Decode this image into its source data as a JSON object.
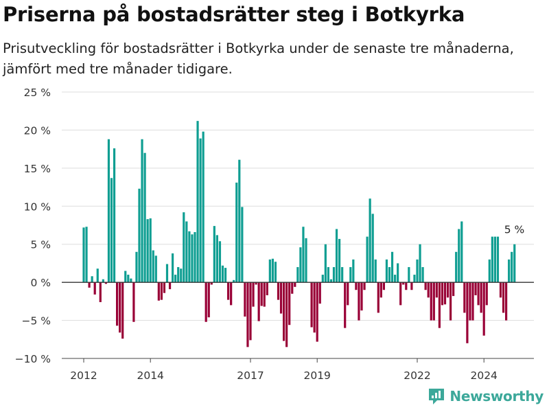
{
  "header": {
    "title": "Priserna på bostadsrätter steg i Botkyrka",
    "subtitle": "Prisutveckling för bostadsrätter i Botkyrka under de senaste tre månaderna, jämfört med tre månader tidigare."
  },
  "brand": {
    "name": "Newsworthy",
    "icon": "newsworthy-logo-icon",
    "color": "#3ca89a"
  },
  "colors": {
    "positive": "#0f9e92",
    "negative": "#990036",
    "grid": "#dddddd",
    "zero_line": "#333333"
  },
  "chart_data": {
    "type": "bar",
    "title": "Priserna på bostadsrätter steg i Botkyrka",
    "subtitle": "Prisutveckling för bostadsrätter i Botkyrka under de senaste tre månaderna, jämfört med tre månader tidigare.",
    "xlabel": "",
    "ylabel": "",
    "unit": "%",
    "x_start": "2012-01",
    "x_interval": "monthly",
    "ylim": [
      -10,
      25
    ],
    "yticks": [
      -10,
      -5,
      0,
      5,
      10,
      15,
      20,
      25
    ],
    "ytick_labels": [
      "−10 %",
      "−5 %",
      "0 %",
      "5 %",
      "10 %",
      "15 %",
      "20 %",
      "25 %"
    ],
    "xticks": [
      {
        "label": "2012",
        "date": "2012-01"
      },
      {
        "label": "2014",
        "date": "2014-01"
      },
      {
        "label": "2017",
        "date": "2017-01"
      },
      {
        "label": "2019",
        "date": "2019-01"
      },
      {
        "label": "2022",
        "date": "2022-01"
      },
      {
        "label": "2024",
        "date": "2024-01"
      }
    ],
    "grid": true,
    "annotation": {
      "text": "5 %",
      "date": "2024-12"
    },
    "values": [
      7.2,
      7.3,
      -0.7,
      0.8,
      -1.6,
      1.8,
      -2.6,
      0.4,
      -0.2,
      18.8,
      13.7,
      17.6,
      -5.7,
      -6.6,
      -7.4,
      1.5,
      1.0,
      0.5,
      -5.2,
      4.0,
      12.3,
      18.8,
      17.0,
      8.3,
      8.4,
      4.2,
      3.5,
      -2.4,
      -2.3,
      -1.4,
      2.4,
      -0.9,
      3.8,
      1.0,
      2.0,
      1.8,
      9.2,
      8.0,
      6.7,
      6.3,
      6.6,
      21.2,
      18.9,
      19.8,
      -5.2,
      -4.6,
      -0.3,
      7.4,
      6.2,
      5.4,
      2.2,
      1.9,
      -2.3,
      -3.0,
      0.3,
      13.1,
      16.1,
      9.9,
      -4.5,
      -8.5,
      -7.6,
      -3.2,
      -0.3,
      -5.1,
      -3.1,
      -3.2,
      -1.7,
      3.0,
      3.1,
      2.7,
      -2.3,
      -4.1,
      -7.7,
      -8.5,
      -5.6,
      -1.5,
      -0.6,
      2.0,
      4.6,
      7.3,
      5.8,
      0.0,
      -5.9,
      -6.6,
      -7.8,
      -2.8,
      1.0,
      5.0,
      2.0,
      0.4,
      2.0,
      7.0,
      5.7,
      2.0,
      -6.0,
      -3.0,
      2.0,
      3.0,
      -1.0,
      -5.0,
      -3.7,
      -1.0,
      6.0,
      11.0,
      9.0,
      3.0,
      -4.0,
      -2.0,
      -1.0,
      3.0,
      2.0,
      4.0,
      1.0,
      2.5,
      -3.0,
      -0.3,
      -1.0,
      2.0,
      -1.0,
      1.0,
      3.0,
      5.0,
      2.0,
      -1.0,
      -2.0,
      -5.0,
      -5.0,
      -2.0,
      -6.0,
      -3.0,
      -2.9,
      -2.0,
      -5.0,
      -1.8,
      4.0,
      7.0,
      8.0,
      -4.0,
      -8.0,
      -5.0,
      -5.0,
      -1.7,
      -3.0,
      -4.0,
      -7.0,
      -3.0,
      3.0,
      6.0,
      6.0,
      6.0,
      -2.0,
      -4.0,
      -5.0,
      3.0,
      4.0,
      5.0
    ]
  }
}
